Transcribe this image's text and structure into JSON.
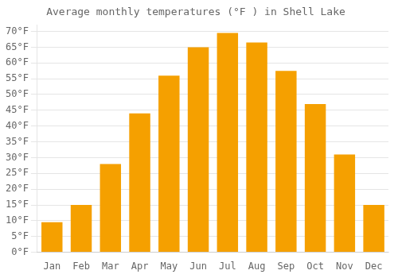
{
  "chart_data": {
    "type": "bar",
    "title": "Average monthly temperatures (°F ) in Shell Lake",
    "categories": [
      "Jan",
      "Feb",
      "Mar",
      "Apr",
      "May",
      "Jun",
      "Jul",
      "Aug",
      "Sep",
      "Oct",
      "Nov",
      "Dec"
    ],
    "values": [
      9.5,
      15,
      28,
      44,
      56,
      65,
      69.5,
      66.5,
      57.5,
      47,
      31,
      15
    ],
    "color": "#F5A000",
    "ylim": [
      0,
      72
    ],
    "yticks": [
      {
        "value": 0,
        "label": "0°F"
      },
      {
        "value": 5,
        "label": "5°F"
      },
      {
        "value": 10,
        "label": "10°F"
      },
      {
        "value": 15,
        "label": "15°F"
      },
      {
        "value": 20,
        "label": "20°F"
      },
      {
        "value": 25,
        "label": "25°F"
      },
      {
        "value": 30,
        "label": "30°F"
      },
      {
        "value": 35,
        "label": "35°F"
      },
      {
        "value": 40,
        "label": "40°F"
      },
      {
        "value": 45,
        "label": "45°F"
      },
      {
        "value": 50,
        "label": "50°F"
      },
      {
        "value": 55,
        "label": "55°F"
      },
      {
        "value": 60,
        "label": "60°F"
      },
      {
        "value": 65,
        "label": "65°F"
      },
      {
        "value": 70,
        "label": "70°F"
      }
    ],
    "grid": true
  }
}
